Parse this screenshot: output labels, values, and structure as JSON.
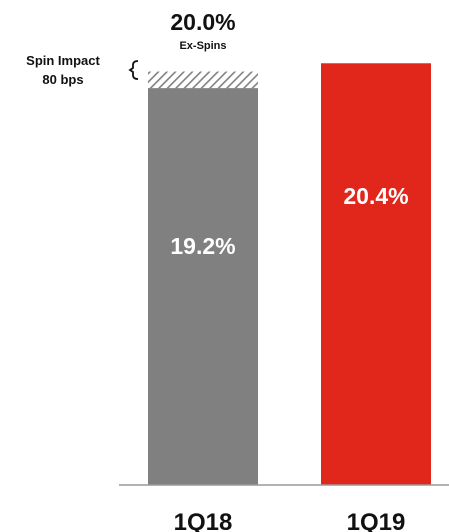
{
  "chart_data": {
    "type": "bar",
    "categories": [
      "1Q18",
      "1Q19"
    ],
    "values": [
      19.2,
      20.4
    ],
    "value_labels": [
      "19.2%",
      "20.4%"
    ],
    "stacked_segment": {
      "category": "1Q18",
      "value": 0.8,
      "pattern": "diagonal-hatch",
      "total_label": "20.0%",
      "total_sublabel": "Ex-Spins"
    },
    "annotation": {
      "line1": "Spin Impact",
      "line2": "80 bps"
    },
    "colors": [
      "#808080",
      "#e1261c"
    ],
    "hatch_color": "#808080",
    "value_label_color": "#ffffff",
    "ylim": [
      0,
      20.8
    ],
    "grid": false,
    "legend": "none",
    "title": "",
    "xlabel": "",
    "ylabel": ""
  }
}
